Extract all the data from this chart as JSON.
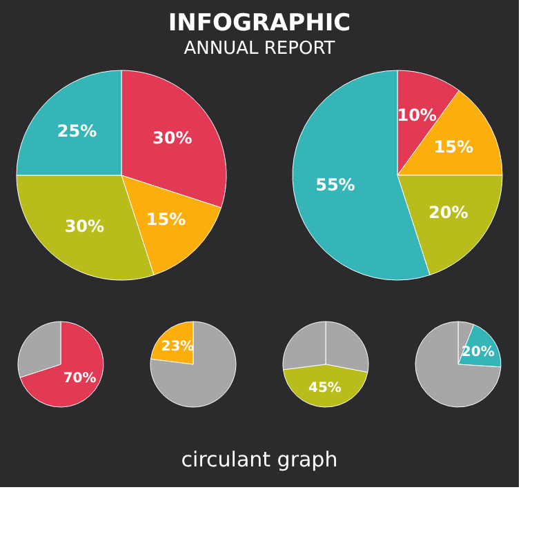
{
  "chart_data": [
    {
      "type": "pie",
      "title": "INFOGRAPHIC",
      "subtitle": "ANNUAL REPORT",
      "categories": [
        null,
        null,
        null,
        null
      ],
      "values": [
        30,
        15,
        30,
        25
      ],
      "colors": [
        "#e23a55",
        "#fbae0c",
        "#b8bd1c",
        "#35b5b8"
      ],
      "value_labels": [
        "30%",
        "15%",
        "30%",
        "25%"
      ]
    },
    {
      "type": "pie",
      "categories": [
        null,
        null,
        null,
        null
      ],
      "values": [
        10,
        15,
        20,
        55
      ],
      "colors": [
        "#e23a55",
        "#fbae0c",
        "#b8bd1c",
        "#35b5b8"
      ],
      "value_labels": [
        "10%",
        "15%",
        "20%",
        "55%"
      ]
    },
    {
      "type": "pie",
      "categories": [
        null,
        null
      ],
      "values": [
        70,
        30
      ],
      "colors": [
        "#e23a55",
        "#a7a7a9"
      ],
      "value_labels": [
        "70%",
        null
      ]
    },
    {
      "type": "pie",
      "categories": [
        null,
        null
      ],
      "values": [
        77,
        23
      ],
      "colors": [
        "#a7a7a9",
        "#fbae0c"
      ],
      "value_labels": [
        null,
        "23%"
      ]
    },
    {
      "type": "pie",
      "categories": [
        null,
        null,
        null
      ],
      "values": [
        28,
        45,
        27
      ],
      "colors": [
        "#a7a7a9",
        "#b8bd1c",
        "#a7a7a9"
      ],
      "value_labels": [
        null,
        "45%",
        null
      ]
    },
    {
      "type": "pie",
      "categories": [
        null,
        null,
        null
      ],
      "values": [
        6,
        20,
        74
      ],
      "colors": [
        "#a7a7a9",
        "#35b5b8",
        "#a7a7a9"
      ],
      "value_labels": [
        null,
        "20%",
        null
      ]
    },
    {
      "type": "other",
      "annotations": [
        "circulant graph"
      ]
    }
  ]
}
